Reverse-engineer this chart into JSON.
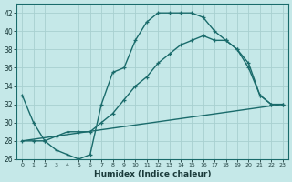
{
  "xlabel": "Humidex (Indice chaleur)",
  "bg_color": "#c5e8e8",
  "line_color": "#1a6b6b",
  "grid_color": "#a8d0d0",
  "xlim": [
    -0.5,
    23.5
  ],
  "ylim": [
    26,
    43
  ],
  "xticks": [
    0,
    1,
    2,
    3,
    4,
    5,
    6,
    7,
    8,
    9,
    10,
    11,
    12,
    13,
    14,
    15,
    16,
    17,
    18,
    19,
    20,
    21,
    22,
    23
  ],
  "yticks": [
    26,
    28,
    30,
    32,
    34,
    36,
    38,
    40,
    42
  ],
  "line1_x": [
    0,
    1,
    2,
    3,
    4,
    5,
    6,
    7,
    8,
    9,
    10,
    11,
    12,
    13,
    14,
    15,
    16,
    17,
    18,
    19,
    20,
    21,
    22,
    23
  ],
  "line1_y": [
    33,
    30,
    28,
    27,
    26.5,
    26,
    26.5,
    32,
    35.5,
    36,
    39,
    41,
    42,
    42,
    42,
    42,
    41.5,
    40,
    39,
    38,
    36,
    33,
    32,
    32
  ],
  "line2_x": [
    0,
    23
  ],
  "line2_y": [
    28,
    32
  ],
  "line3_x": [
    0,
    1,
    2,
    3,
    4,
    5,
    6,
    7,
    8,
    9,
    10,
    11,
    12,
    13,
    14,
    15,
    16,
    17,
    18,
    19,
    20,
    21,
    22,
    23
  ],
  "line3_y": [
    28,
    28,
    28,
    28.5,
    29,
    29,
    29,
    30,
    31,
    32.5,
    34,
    35,
    36.5,
    37.5,
    38.5,
    39,
    39.5,
    39,
    39,
    38,
    36.5,
    33,
    32,
    32
  ]
}
